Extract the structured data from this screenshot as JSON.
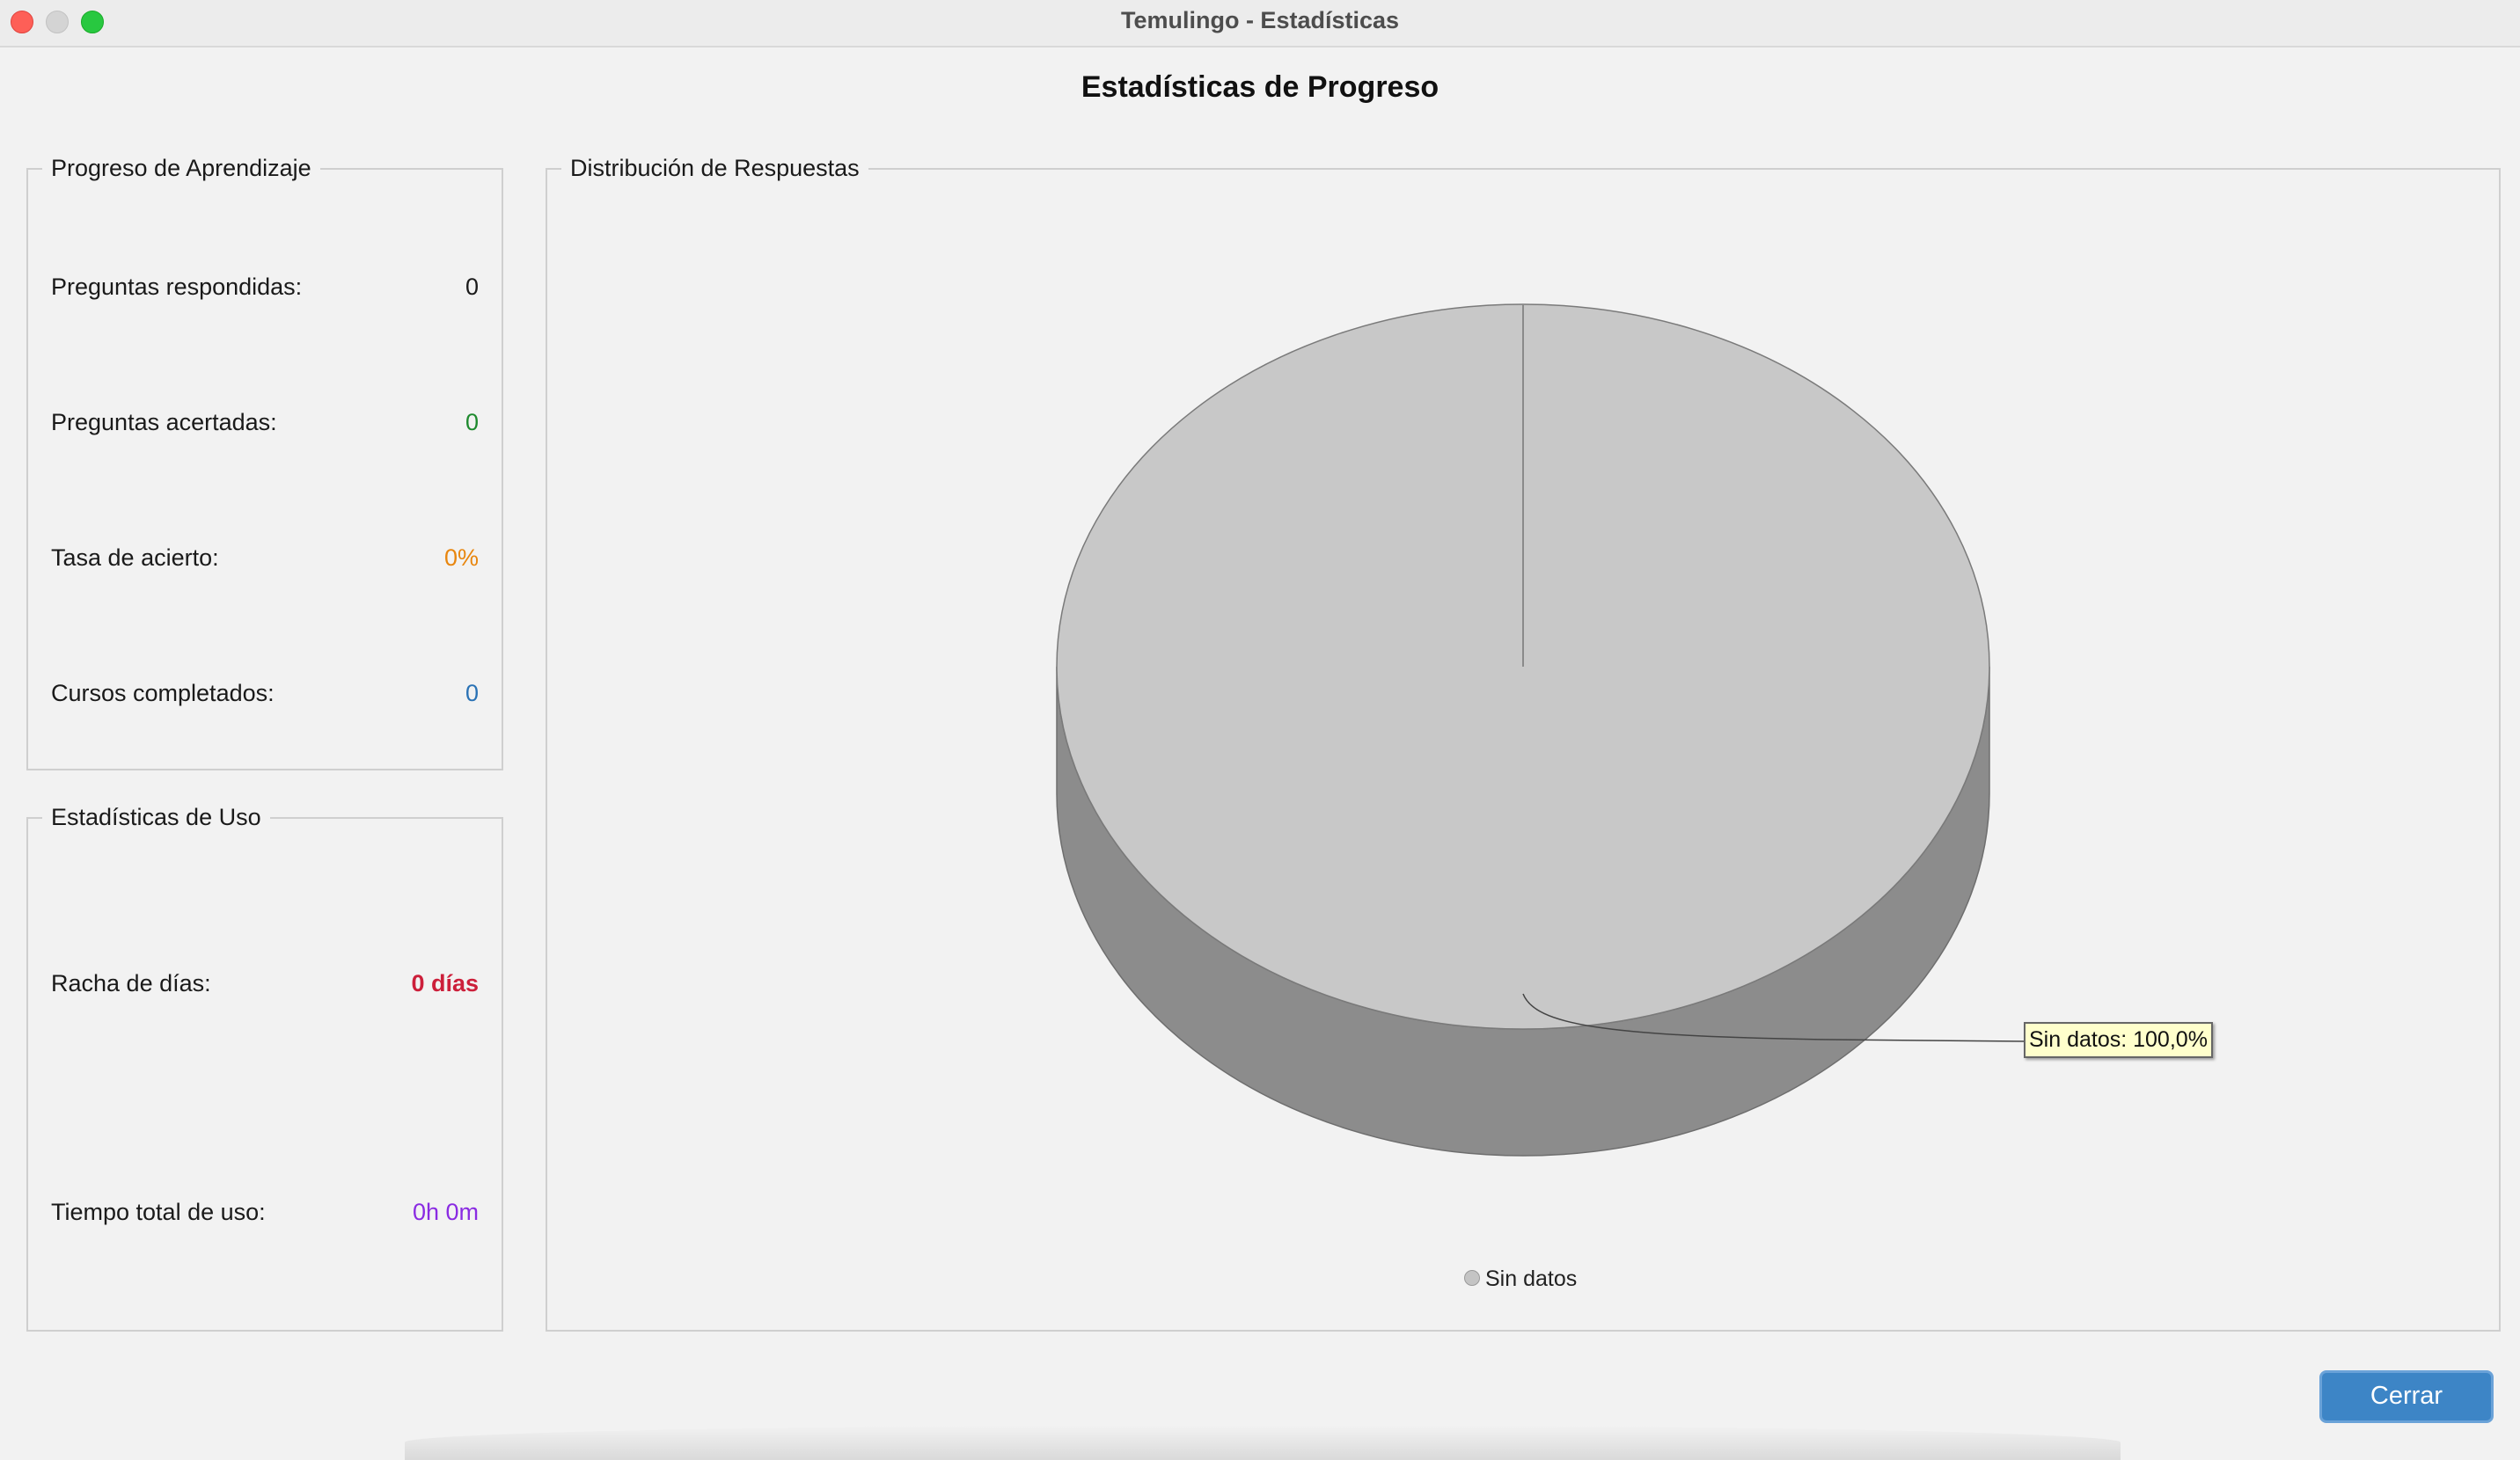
{
  "window": {
    "title": "Temulingo - Estadísticas"
  },
  "page": {
    "title": "Estadísticas de Progreso"
  },
  "progress_panel": {
    "legend": "Progreso de Aprendizaje",
    "rows": [
      {
        "label": "Preguntas respondidas:",
        "value": "0",
        "color": "#1a1a1a"
      },
      {
        "label": "Preguntas acertadas:",
        "value": "0",
        "color": "#1e8a2e"
      },
      {
        "label": "Tasa de acierto:",
        "value": "0%",
        "color": "#e8860e"
      },
      {
        "label": "Cursos completados:",
        "value": "0",
        "color": "#2a72b5"
      }
    ]
  },
  "usage_panel": {
    "legend": "Estadísticas de Uso",
    "rows": [
      {
        "label": "Racha de días:",
        "value": "0 días",
        "color": "#cc1f3a"
      },
      {
        "label": "Tiempo total de uso:",
        "value": "0h 0m",
        "color": "#8a2be2"
      }
    ]
  },
  "chart_panel": {
    "legend": "Distribución de Respuestas",
    "tooltip": "Sin datos: 100,0%"
  },
  "chart_data": {
    "type": "pie",
    "title": "",
    "style": "3d",
    "slices": [
      {
        "label": "Sin datos",
        "value": 100.0,
        "color": "#c8c8c8"
      }
    ],
    "legend": [
      "Sin datos"
    ],
    "legend_position": "bottom",
    "annotations": [
      "Sin datos: 100,0%"
    ]
  },
  "buttons": {
    "close_label": "Cerrar"
  },
  "colors": {
    "accent": "#3d85c6",
    "pie_top": "#c8c8c8",
    "pie_side": "#8c8c8c"
  }
}
